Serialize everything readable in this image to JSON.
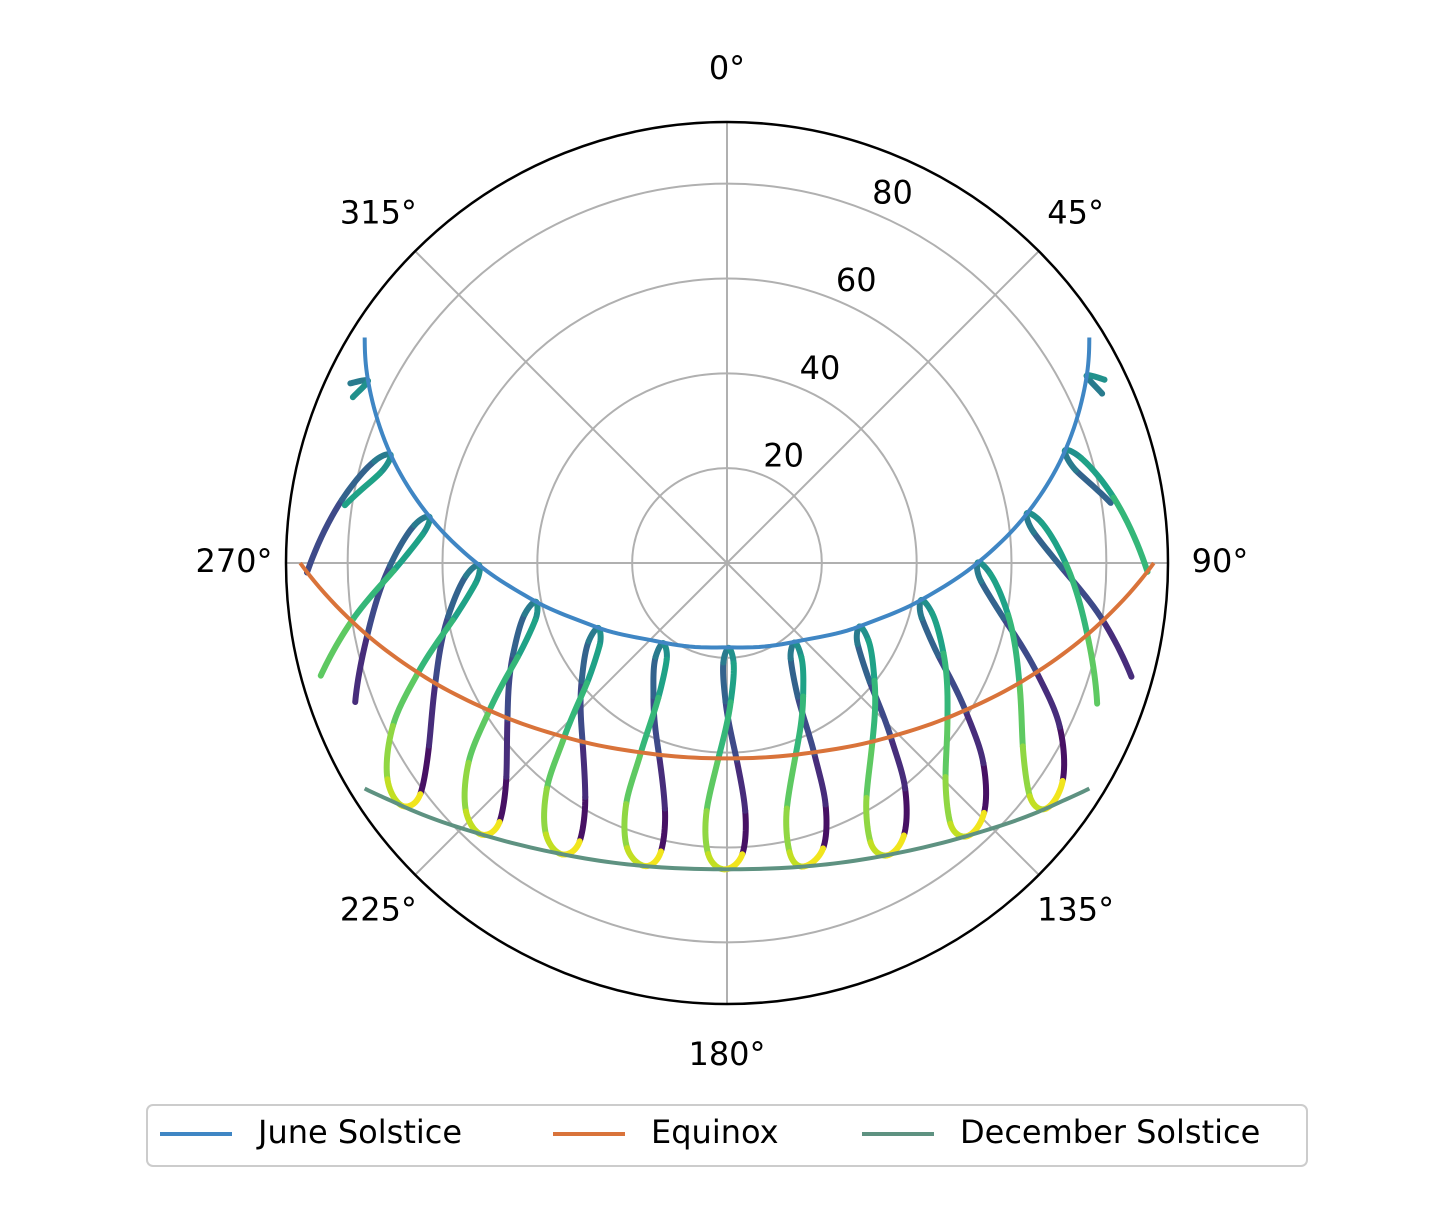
{
  "chart_data": {
    "type": "polar-line",
    "rlim": [
      0,
      93
    ],
    "rticks": [
      20,
      40,
      60,
      80
    ],
    "thetaticks": [
      {
        "value": 0,
        "label": "0°"
      },
      {
        "value": 45,
        "label": "45°"
      },
      {
        "value": 90,
        "label": "90°"
      },
      {
        "value": 135,
        "label": "135°"
      },
      {
        "value": 180,
        "label": "180°"
      },
      {
        "value": 225,
        "label": "225°"
      },
      {
        "value": 270,
        "label": "270°"
      },
      {
        "value": 315,
        "label": "315°"
      }
    ],
    "grid": true,
    "legend": "bottom",
    "series": [
      {
        "name": "June Solstice",
        "color": "#3f86c4",
        "theta": [
          58.1,
          62.8,
          71.9,
          80.9,
          90.2,
          101.1,
          116.1,
          140.3,
          180,
          219.7,
          243.9,
          258.9,
          269.8,
          279.1,
          288.1,
          297.2,
          301.9
        ],
        "r": [
          90,
          85.2,
          74.8,
          63.8,
          52.6,
          41.4,
          30.7,
          21.7,
          17.8,
          21.7,
          30.7,
          41.4,
          52.6,
          63.8,
          74.8,
          85.2,
          90
        ]
      },
      {
        "name": "Equinox",
        "color": "#d9733a",
        "theta": [
          90,
          100,
          110.9,
          123.4,
          138.8,
          157.8,
          180,
          202.2,
          221.2,
          236.6,
          249.1,
          260,
          270
        ],
        "r": [
          90,
          78.8,
          67.9,
          57.9,
          49.4,
          43.4,
          41.2,
          43.4,
          49.4,
          57.9,
          67.9,
          78.8,
          90
        ]
      },
      {
        "name": "December Solstice",
        "color": "#5e9281",
        "theta": [
          121.9,
          127.2,
          138.3,
          150.9,
          165.4,
          180,
          194.6,
          209.1,
          221.7,
          232.8,
          238.1
        ],
        "r": [
          90,
          85.2,
          76.9,
          70.4,
          66.1,
          64.6,
          66.1,
          70.4,
          76.9,
          85.2,
          90
        ]
      }
    ],
    "colormap": [
      "#471164",
      "#472d7b",
      "#3e4a89",
      "#33638d",
      "#297b8e",
      "#21918c",
      "#1fa287",
      "#35b779",
      "#5ec962",
      "#90d743",
      "#c2df23",
      "#f1e51d"
    ],
    "analemmas": [
      {
        "theta": [
          null,
          null,
          null,
          null,
          65.7,
          62.5,
          64.1,
          null,
          null,
          null,
          null,
          null
        ],
        "r": [
          null,
          null,
          null,
          null,
          86.8,
          85.5,
          88.5,
          null,
          null,
          null,
          null,
          null
        ]
      },
      {
        "theta": [
          null,
          null,
          null,
          81.1,
          75.1,
          71.6,
          73.5,
          80.4,
          91.2,
          null,
          null,
          null
        ],
        "r": [
          null,
          null,
          null,
          81.9,
          76.1,
          75.1,
          77.9,
          82.7,
          88.7,
          null,
          null,
          null
        ]
      },
      {
        "theta": [
          null,
          105.7,
          98.7,
          90.9,
          84.3,
          80.6,
          82.7,
          90.2,
          101.3,
          110.8,
          null,
          null
        ],
        "r": [
          null,
          88.6,
          80.2,
          70.7,
          65.0,
          64.1,
          66.9,
          71.5,
          77.5,
          83.5,
          null,
          null
        ]
      },
      {
        "theta": [
          123.0,
          116.2,
          109.5,
          101.3,
          94.1,
          89.9,
          92.4,
          100.5,
          112.4,
          121.8,
          127.6,
          127.6
        ],
        "r": [
          84.4,
          78.2,
          69.3,
          59.5,
          53.7,
          52.9,
          55.6,
          60.3,
          66.7,
          73.4,
          80.6,
          84.9
        ]
      },
      {
        "theta": [
          134.2,
          128.0,
          121.8,
          113.7,
          105.8,
          100.8,
          103.7,
          112.7,
          125.2,
          134.4,
          139.4,
          138.7
        ],
        "r": [
          75.6,
          68.6,
          59.2,
          48.7,
          42.7,
          41.7,
          44.5,
          49.5,
          56.9,
          64.5,
          72.4,
          76.7
        ]
      },
      {
        "theta": [
          147.0,
          141.7,
          136.8,
          129.8,
          121.8,
          115.6,
          118.7,
          128.6,
          141.0,
          149.3,
          152.8,
          151.3
        ],
        "r": [
          68.5,
          60.6,
          50.5,
          39.2,
          32.4,
          31.0,
          34.0,
          39.8,
          48.7,
          57.6,
          66.2,
          70.3
        ]
      },
      {
        "theta": [
          161.4,
          157.8,
          155.4,
          152.1,
          146.3,
          139.6,
          141.7,
          150.3,
          160.4,
          166.3,
          167.8,
          165.9
        ],
        "r": [
          63.5,
          55.0,
          44.2,
          31.9,
          24.2,
          22.0,
          25.3,
          32.4,
          43.1,
          53.3,
          62.4,
          66.0
        ]
      },
      {
        "theta": [
          177.0,
          175.8,
          177.2,
          180.6,
          182.1,
          178.8,
          176.2,
          178.5,
          182.6,
          184.7,
          183.7,
          180.5
        ],
        "r": [
          61.5,
          52.4,
          41.5,
          29.2,
          21.0,
          17.9,
          21.2,
          29.4,
          41.5,
          52.5,
          61.5,
          64.6
        ]
      },
      {
        "theta": [
          192.9,
          194.2,
          199.4,
          208.9,
          217.2,
          218.5,
          212.0,
          207.0,
          204.4,
          202.7,
          199.3,
          195.1
        ],
        "r": [
          62.4,
          53.4,
          43.1,
          32.1,
          24.9,
          21.6,
          24.0,
          31.9,
          44.1,
          55.1,
          63.7,
          66.2
        ]
      },
      {
        "theta": [
          207.9,
          211.2,
          218.8,
          230.9,
          240.5,
          243.2,
          237.1,
          229.4,
          223.0,
          218.6,
          213.7,
          209.5
        ],
        "r": [
          66.4,
          57.7,
          48.6,
          39.5,
          33.5,
          30.4,
          32.0,
          38.9,
          50.4,
          60.9,
          68.8,
          70.6
        ]
      },
      {
        "theta": [
          221.3,
          225.9,
          234.6,
          246.8,
          255.8,
          258.5,
          253.4,
          245.8,
          238.1,
          232.3,
          226.4,
          222.1
        ],
        "r": [
          72.7,
          64.8,
          56.8,
          49.1,
          44.0,
          41.1,
          42.2,
          48.4,
          59.1,
          68.9,
          76.0,
          77.2
        ]
      },
      {
        "theta": [
          233.0,
          238.5,
          247.5,
          259.1,
          267.2,
          269.5,
          265.4,
          258.2,
          250.4,
          244.0,
          237.5,
          233.2
        ],
        "r": [
          81.0,
          73.7,
          66.6,
          59.9,
          55.1,
          52.3,
          53.2,
          59.1,
          69.2,
          78.4,
          84.9,
          85.5
        ]
      },
      {
        "theta": [
          null,
          249.5,
          258.6,
          269.5,
          276.9,
          278.8,
          275.3,
          268.7,
          261.2,
          254.5,
          null,
          null
        ],
        "r": [
          null,
          83.7,
          77.4,
          71.1,
          66.4,
          63.5,
          64.5,
          70.3,
          80.1,
          88.9,
          null,
          null
        ]
      },
      {
        "theta": [
          null,
          null,
          268.7,
          279.3,
          286.1,
          287.8,
          284.5,
          278.6,
          null,
          null,
          null,
          null
        ],
        "r": [
          null,
          null,
          88.6,
          82.3,
          77.4,
          74.5,
          75.6,
          81.5,
          null,
          null,
          null,
          null
        ]
      },
      {
        "theta": [
          null,
          null,
          null,
          null,
          295.5,
          296.9,
          293.9,
          null,
          null,
          null,
          null,
          null
        ],
        "r": [
          null,
          null,
          null,
          null,
          88.0,
          84.9,
          86.3,
          null,
          null,
          null,
          null,
          null
        ]
      }
    ]
  }
}
